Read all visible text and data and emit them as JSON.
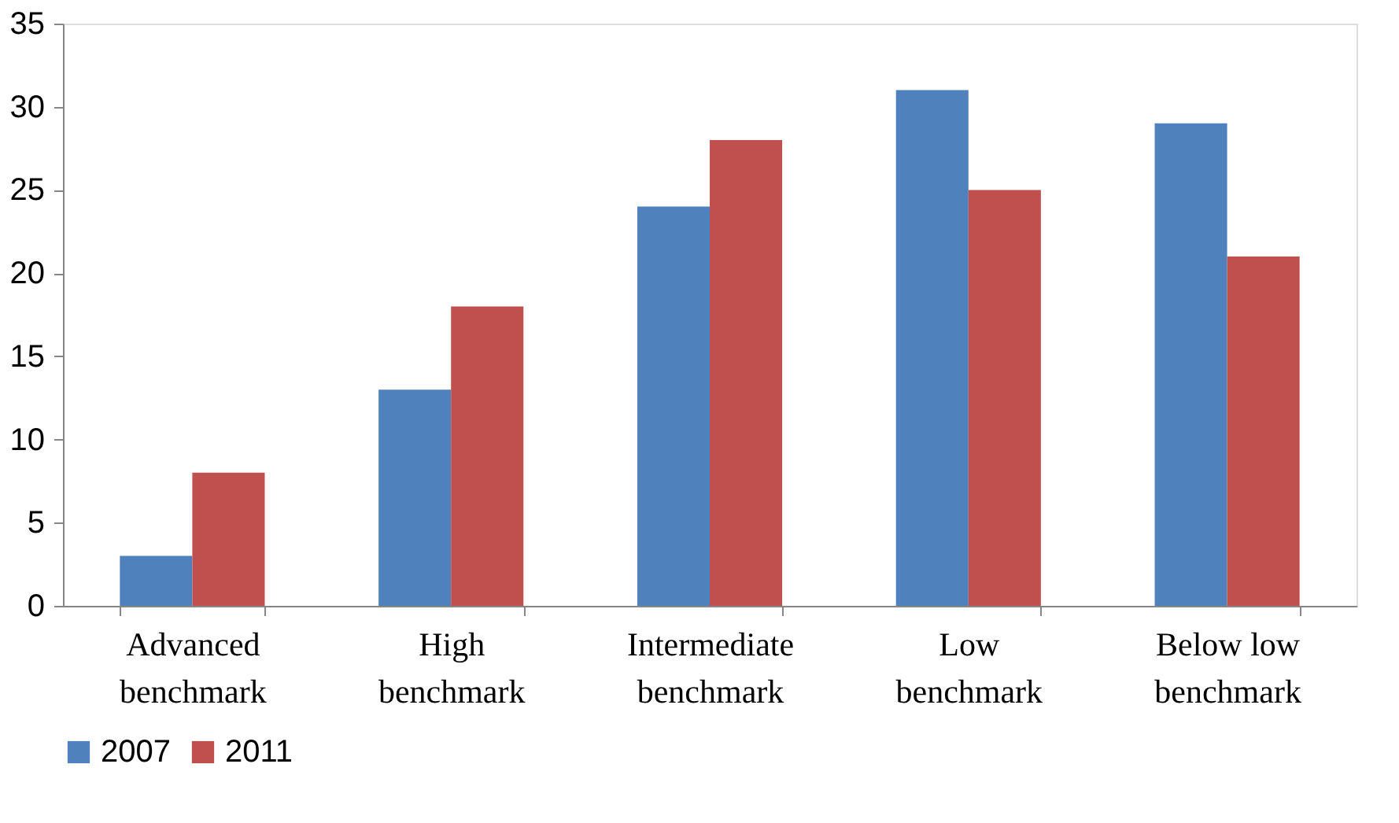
{
  "chart_data": {
    "type": "bar",
    "categories": [
      "Advanced benchmark",
      "High benchmark",
      "Intermediate benchmark",
      "Low benchmark",
      "Below low benchmark"
    ],
    "series": [
      {
        "name": "2007",
        "color": "#4f81bd",
        "values": [
          3,
          13,
          24,
          31,
          29
        ]
      },
      {
        "name": "2011",
        "color": "#c0504d",
        "values": [
          8,
          18,
          28,
          25,
          21
        ]
      }
    ],
    "ylim": [
      0,
      35
    ],
    "yticks": [
      0,
      5,
      10,
      15,
      20,
      25,
      30,
      35
    ],
    "grid": false,
    "legend": "bottom"
  }
}
